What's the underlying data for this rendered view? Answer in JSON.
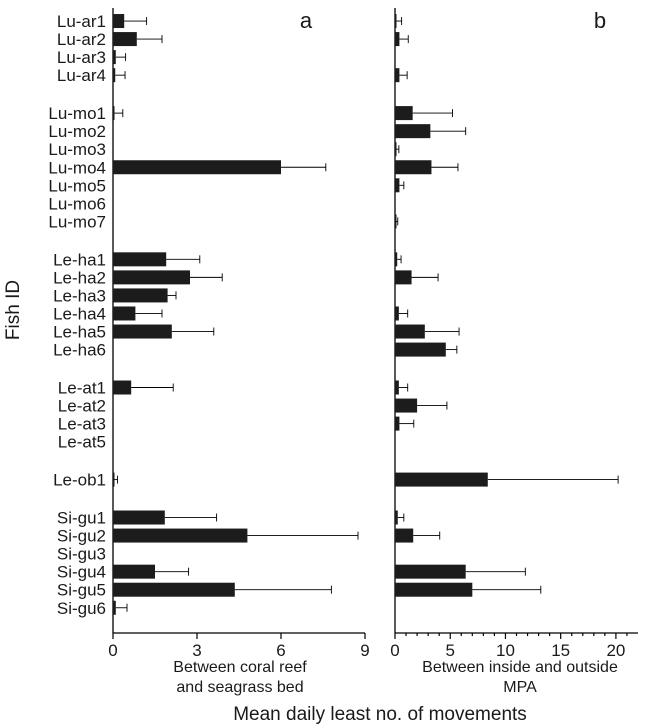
{
  "chart_data": {
    "type": "bar",
    "orientation": "horizontal",
    "shared_ylabel": "Fish ID",
    "shared_xlabel": "Mean daily least no. of movements",
    "categories": [
      "Lu-ar1",
      "Lu-ar2",
      "Lu-ar3",
      "Lu-ar4",
      "Lu-mo1",
      "Lu-mo2",
      "Lu-mo3",
      "Lu-mo4",
      "Lu-mo5",
      "Lu-mo6",
      "Lu-mo7",
      "Le-ha1",
      "Le-ha2",
      "Le-ha3",
      "Le-ha4",
      "Le-ha5",
      "Le-ha6",
      "Le-at1",
      "Le-at2",
      "Le-at3",
      "Le-at5",
      "Le-ob1",
      "Si-gu1",
      "Si-gu2",
      "Si-gu3",
      "Si-gu4",
      "Si-gu5",
      "Si-gu6"
    ],
    "groups": [
      4,
      7,
      6,
      4,
      1,
      6
    ],
    "panels": [
      {
        "letter": "a",
        "xlabel_lines": [
          "Between coral reef",
          "and seagrass bed"
        ],
        "xlim": [
          0,
          9
        ],
        "xticks": [
          0,
          3,
          6,
          9
        ],
        "values": [
          0.4,
          0.85,
          0.1,
          0.08,
          0.05,
          0,
          0,
          6.0,
          0,
          0,
          0,
          1.9,
          2.75,
          1.95,
          0.8,
          2.1,
          0,
          0.65,
          0,
          0,
          0,
          0.04,
          1.85,
          4.8,
          0,
          1.5,
          4.35,
          0.1
        ],
        "errors": [
          0.8,
          0.9,
          0.35,
          0.35,
          0.3,
          0,
          0,
          1.6,
          0,
          0,
          0,
          1.2,
          1.15,
          0.3,
          0.95,
          1.5,
          0,
          1.5,
          0,
          0,
          0,
          0.12,
          1.85,
          3.95,
          0,
          1.2,
          3.45,
          0.4
        ]
      },
      {
        "letter": "b",
        "xlabel_lines": [
          "Between inside and outside",
          "MPA"
        ],
        "xlim": [
          0,
          22
        ],
        "xticks": [
          0,
          5,
          10,
          15,
          20
        ],
        "values": [
          0.1,
          0.4,
          0,
          0.4,
          1.6,
          3.2,
          0.1,
          3.3,
          0.4,
          0,
          0.05,
          0.2,
          1.5,
          0,
          0.35,
          2.7,
          4.6,
          0.35,
          2.0,
          0.4,
          0,
          8.4,
          0.25,
          1.65,
          0,
          6.4,
          7.0,
          0
        ],
        "errors": [
          0.5,
          0.8,
          0,
          0.7,
          3.6,
          3.2,
          0.25,
          2.4,
          0.4,
          0,
          0.2,
          0.35,
          2.4,
          0,
          0.8,
          3.1,
          1.0,
          0.8,
          2.7,
          1.3,
          0,
          11.8,
          0.55,
          2.4,
          0,
          5.4,
          6.2,
          0
        ]
      }
    ]
  }
}
